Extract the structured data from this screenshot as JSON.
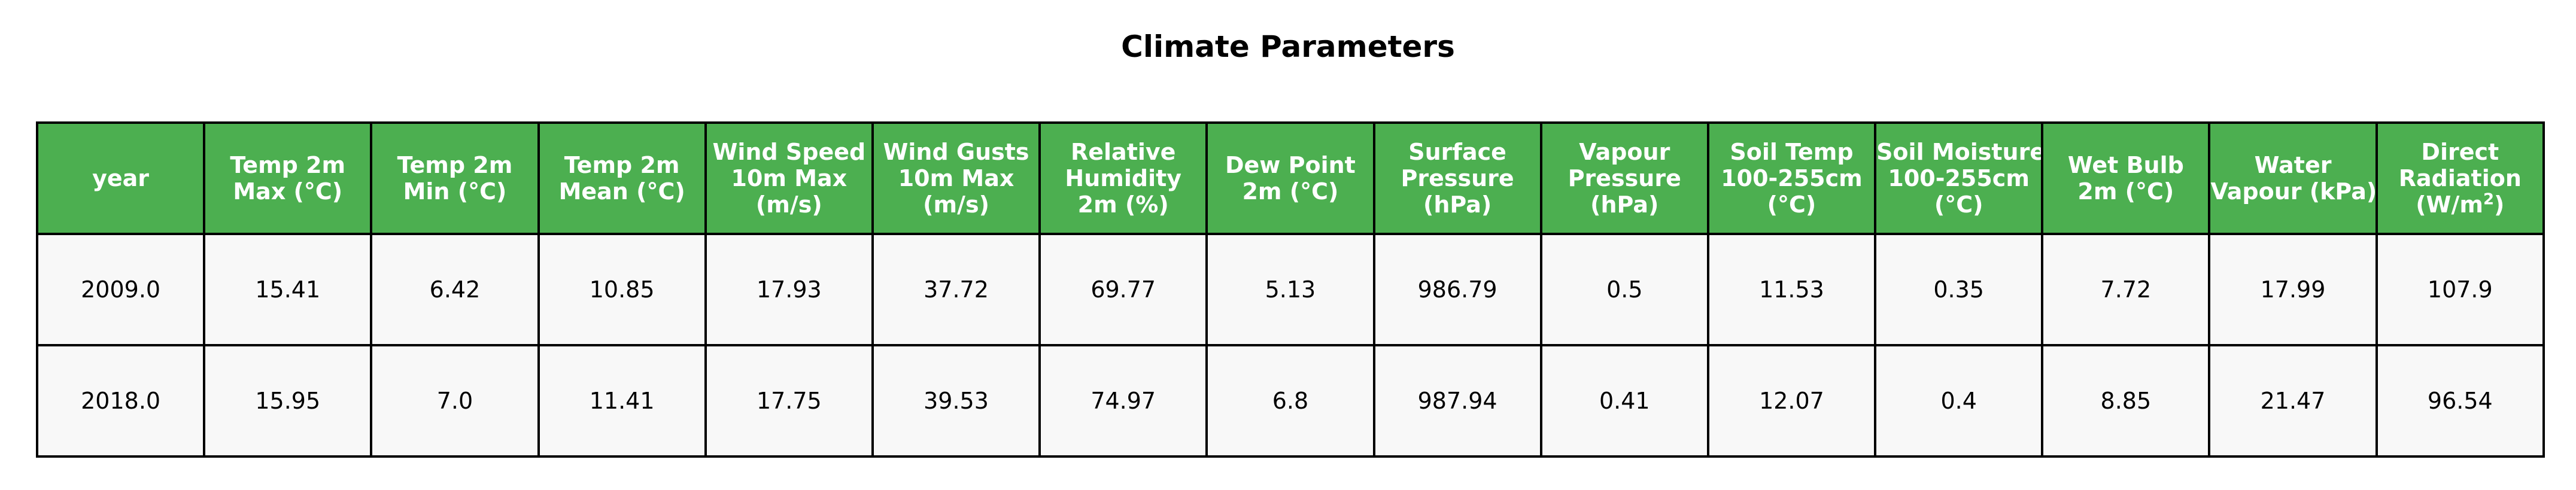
{
  "chart_data": {
    "type": "table",
    "title": "Climate Parameters",
    "header_color": "#4caf50",
    "header_text_color": "#ffffff",
    "cell_color": "#f8f8f8",
    "border_color": "#000000",
    "columns": [
      {
        "lines": [
          "year"
        ]
      },
      {
        "lines": [
          "Temp 2m",
          "Max (°C)"
        ]
      },
      {
        "lines": [
          "Temp 2m",
          "Min (°C)"
        ]
      },
      {
        "lines": [
          "Temp 2m",
          "Mean (°C)"
        ]
      },
      {
        "lines": [
          "Wind Speed",
          "10m Max",
          "(m/s)"
        ]
      },
      {
        "lines": [
          "Wind Gusts",
          "10m Max",
          "(m/s)"
        ]
      },
      {
        "lines": [
          "Relative",
          "Humidity",
          "2m (%)"
        ]
      },
      {
        "lines": [
          "Dew Point",
          "2m (°C)"
        ]
      },
      {
        "lines": [
          "Surface",
          "Pressure",
          "(hPa)"
        ]
      },
      {
        "lines": [
          "Vapour",
          "Pressure",
          "(hPa)"
        ]
      },
      {
        "lines": [
          "Soil Temp",
          "100-255cm",
          "(°C)"
        ]
      },
      {
        "lines": [
          "Soil Moisture",
          "100-255cm",
          "(°C)"
        ]
      },
      {
        "lines": [
          "Wet Bulb",
          "2m (°C)"
        ]
      },
      {
        "lines": [
          "Water",
          "Vapour (kPa)"
        ]
      },
      {
        "lines": [
          "Direct",
          "Radiation",
          "(W/m",
          "2",
          ")"
        ],
        "superscript_last_line": true
      }
    ],
    "rows": [
      [
        "2009.0",
        "15.41",
        "6.42",
        "10.85",
        "17.93",
        "37.72",
        "69.77",
        "5.13",
        "986.79",
        "0.5",
        "11.53",
        "0.35",
        "7.72",
        "17.99",
        "107.9"
      ],
      [
        "2018.0",
        "15.95",
        "7.0",
        "11.41",
        "17.75",
        "39.53",
        "74.97",
        "6.8",
        "987.94",
        "0.41",
        "12.07",
        "0.4",
        "8.85",
        "21.47",
        "96.54"
      ]
    ]
  }
}
